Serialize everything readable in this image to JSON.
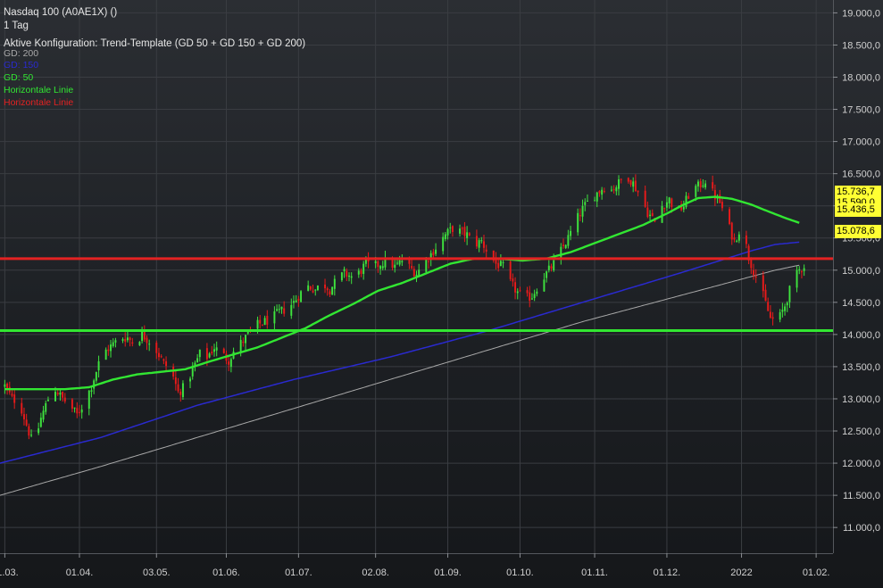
{
  "header": {
    "title": "Nasdaq 100 (A0AE1X) ()",
    "period": "1 Tag",
    "config": "Aktive Konfiguration: Trend-Template (GD 50 + GD 150 + GD 200)"
  },
  "legend": [
    {
      "label": "GD: 200",
      "color": "#a9a9a9"
    },
    {
      "label": "GD: 150",
      "color": "#2a2ad0"
    },
    {
      "label": "GD: 50",
      "color": "#32e632"
    },
    {
      "label": "Horizontale Linie",
      "color": "#32e632"
    },
    {
      "label": "Horizontale Linie",
      "color": "#e32222"
    }
  ],
  "badges": [
    {
      "value": "15.736,7",
      "color": "#ffff33"
    },
    {
      "value": "15.590,0",
      "color": "#ffff33"
    },
    {
      "value": "15.436,5",
      "color": "#ffff33"
    },
    {
      "value": "15.078,6",
      "color": "#ffff33"
    }
  ],
  "colors": {
    "up": "#3ee23e",
    "down": "#e81a1a",
    "ma50": "#32e632",
    "ma150": "#2a2ad0",
    "ma200": "#a9a9a9",
    "hline_green": "#32e632",
    "hline_red": "#e32222",
    "grid": "#3a3d42",
    "axis_text": "#d0d0d0"
  },
  "chart_data": {
    "type": "candlestick",
    "instrument": "Nasdaq 100 (A0AE1X)",
    "interval": "1 Tag",
    "y_ticks": [
      11000,
      11500,
      12000,
      12500,
      13000,
      13500,
      14000,
      14500,
      15000,
      15500,
      16000,
      16500,
      17000,
      17500,
      18000,
      18500,
      19000
    ],
    "y_tick_labels": [
      "11.000,0",
      "11.500,0",
      "12.000,0",
      "12.500,0",
      "13.000,0",
      "13.500,0",
      "14.000,0",
      "14.500,0",
      "15.000,0",
      "15.500,0",
      "16.000,0",
      "16.500,0",
      "17.000,0",
      "17.500,0",
      "18.000,0",
      "18.500,0",
      "19.000,0"
    ],
    "x_tick_labels": [
      "01.03.",
      "01.04.",
      "03.05.",
      "01.06.",
      "01.07.",
      "02.08.",
      "01.09.",
      "01.10.",
      "01.11.",
      "01.12.",
      "2022",
      "01.02."
    ],
    "x_tick_days": [
      0,
      31,
      63,
      92,
      122,
      154,
      184,
      214,
      245,
      275,
      306,
      337
    ],
    "ylim": [
      10600,
      19200
    ],
    "xlim": [
      -2,
      344
    ],
    "horizontal_lines": [
      {
        "label": "Horizontale Linie",
        "value": 14060,
        "color": "green"
      },
      {
        "label": "Horizontale Linie",
        "value": 15180,
        "color": "red"
      }
    ],
    "close_anchors": [
      [
        0,
        13200
      ],
      [
        3,
        13000
      ],
      [
        6,
        12950
      ],
      [
        9,
        12600
      ],
      [
        12,
        12250
      ],
      [
        15,
        12700
      ],
      [
        18,
        13000
      ],
      [
        21,
        13150
      ],
      [
        24,
        13000
      ],
      [
        27,
        12900
      ],
      [
        30,
        12750
      ],
      [
        33,
        12950
      ],
      [
        36,
        13200
      ],
      [
        39,
        13550
      ],
      [
        42,
        13750
      ],
      [
        45,
        13850
      ],
      [
        48,
        13950
      ],
      [
        51,
        13950
      ],
      [
        54,
        13850
      ],
      [
        57,
        14000
      ],
      [
        60,
        13900
      ],
      [
        63,
        13750
      ],
      [
        66,
        13550
      ],
      [
        69,
        13450
      ],
      [
        72,
        13100
      ],
      [
        75,
        13200
      ],
      [
        78,
        13450
      ],
      [
        81,
        13700
      ],
      [
        84,
        13650
      ],
      [
        87,
        13800
      ],
      [
        90,
        13700
      ],
      [
        93,
        13600
      ],
      [
        96,
        13800
      ],
      [
        99,
        13900
      ],
      [
        102,
        14050
      ],
      [
        105,
        14150
      ],
      [
        108,
        14200
      ],
      [
        111,
        14250
      ],
      [
        114,
        14350
      ],
      [
        117,
        14400
      ],
      [
        120,
        14500
      ],
      [
        123,
        14650
      ],
      [
        126,
        14750
      ],
      [
        129,
        14700
      ],
      [
        132,
        14800
      ],
      [
        135,
        14700
      ],
      [
        138,
        14850
      ],
      [
        141,
        14950
      ],
      [
        144,
        14900
      ],
      [
        147,
        14950
      ],
      [
        150,
        15100
      ],
      [
        153,
        15050
      ],
      [
        156,
        15100
      ],
      [
        159,
        15150
      ],
      [
        162,
        15050
      ],
      [
        165,
        15150
      ],
      [
        168,
        15050
      ],
      [
        171,
        14950
      ],
      [
        174,
        15100
      ],
      [
        177,
        15250
      ],
      [
        180,
        15400
      ],
      [
        183,
        15550
      ],
      [
        186,
        15650
      ],
      [
        189,
        15600
      ],
      [
        192,
        15550
      ],
      [
        195,
        15400
      ],
      [
        198,
        15450
      ],
      [
        201,
        15250
      ],
      [
        204,
        15100
      ],
      [
        207,
        15050
      ],
      [
        210,
        14800
      ],
      [
        213,
        14650
      ],
      [
        216,
        14550
      ],
      [
        219,
        14600
      ],
      [
        222,
        14800
      ],
      [
        225,
        14950
      ],
      [
        228,
        15100
      ],
      [
        231,
        15300
      ],
      [
        234,
        15500
      ],
      [
        237,
        15750
      ],
      [
        240,
        15950
      ],
      [
        243,
        16100
      ],
      [
        246,
        16200
      ],
      [
        249,
        16300
      ],
      [
        252,
        16250
      ],
      [
        255,
        16350
      ],
      [
        258,
        16500
      ],
      [
        261,
        16350
      ],
      [
        264,
        16150
      ],
      [
        267,
        15900
      ],
      [
        270,
        15750
      ],
      [
        273,
        16000
      ],
      [
        276,
        16100
      ],
      [
        279,
        15900
      ],
      [
        282,
        16000
      ],
      [
        285,
        16250
      ],
      [
        288,
        16300
      ],
      [
        291,
        16400
      ],
      [
        294,
        16200
      ],
      [
        297,
        16050
      ],
      [
        300,
        15750
      ],
      [
        303,
        15450
      ],
      [
        306,
        15700
      ],
      [
        309,
        15200
      ],
      [
        312,
        14900
      ],
      [
        315,
        14600
      ],
      [
        318,
        14250
      ],
      [
        321,
        14200
      ],
      [
        324,
        14450
      ],
      [
        327,
        14800
      ],
      [
        330,
        15000
      ],
      [
        332,
        15080
      ]
    ],
    "ma50_anchors": [
      [
        0,
        13150
      ],
      [
        15,
        13150
      ],
      [
        25,
        13150
      ],
      [
        35,
        13180
      ],
      [
        45,
        13300
      ],
      [
        55,
        13380
      ],
      [
        65,
        13420
      ],
      [
        75,
        13460
      ],
      [
        85,
        13580
      ],
      [
        95,
        13690
      ],
      [
        105,
        13800
      ],
      [
        115,
        13950
      ],
      [
        125,
        14100
      ],
      [
        135,
        14300
      ],
      [
        145,
        14480
      ],
      [
        155,
        14680
      ],
      [
        165,
        14800
      ],
      [
        175,
        14950
      ],
      [
        185,
        15100
      ],
      [
        195,
        15180
      ],
      [
        205,
        15180
      ],
      [
        215,
        15150
      ],
      [
        225,
        15180
      ],
      [
        235,
        15280
      ],
      [
        245,
        15420
      ],
      [
        255,
        15560
      ],
      [
        265,
        15700
      ],
      [
        275,
        15880
      ],
      [
        282,
        16020
      ],
      [
        288,
        16120
      ],
      [
        295,
        16140
      ],
      [
        302,
        16110
      ],
      [
        310,
        16020
      ],
      [
        318,
        15900
      ],
      [
        325,
        15800
      ],
      [
        330,
        15736
      ]
    ],
    "ma150_anchors": [
      [
        -2,
        12000
      ],
      [
        40,
        12400
      ],
      [
        80,
        12900
      ],
      [
        120,
        13300
      ],
      [
        160,
        13650
      ],
      [
        200,
        14050
      ],
      [
        240,
        14500
      ],
      [
        280,
        14950
      ],
      [
        310,
        15300
      ],
      [
        320,
        15400
      ],
      [
        330,
        15436
      ]
    ],
    "ma200_anchors": [
      [
        -2,
        11500
      ],
      [
        40,
        11950
      ],
      [
        80,
        12400
      ],
      [
        120,
        12850
      ],
      [
        160,
        13300
      ],
      [
        200,
        13750
      ],
      [
        240,
        14200
      ],
      [
        280,
        14600
      ],
      [
        310,
        14900
      ],
      [
        320,
        15000
      ],
      [
        330,
        15078
      ]
    ],
    "badge_values": [
      15736.7,
      15590.0,
      15436.5,
      15078.6
    ],
    "legend_position": "top-left",
    "grid": true
  }
}
